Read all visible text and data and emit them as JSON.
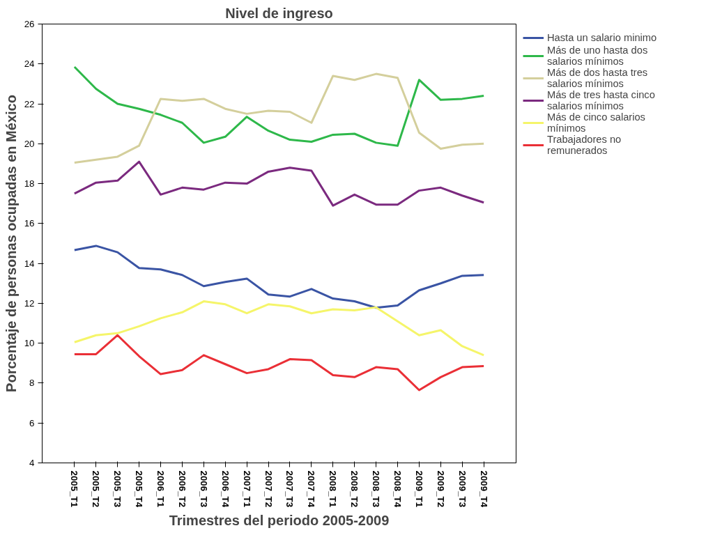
{
  "chart_data": {
    "type": "line",
    "title": "Nivel de ingreso",
    "xlabel": "Trimestres del periodo 2005-2009",
    "ylabel": "Porcentaje de personas ocupadas en México",
    "categories": [
      "2005_T1",
      "2005_T2",
      "2005_T3",
      "2005_T4",
      "2006_T1",
      "2006_T2",
      "2006_T3",
      "2006_T4",
      "2007_T1",
      "2007_T2",
      "2007_T3",
      "2007_T4",
      "2008_T1",
      "2008_T2",
      "2008_T3",
      "2008_T4",
      "2009_T1",
      "2009_T2",
      "2009_T3",
      "2009_T4"
    ],
    "ylim": [
      4,
      26
    ],
    "yticks": [
      4,
      6,
      8,
      10,
      12,
      14,
      16,
      18,
      20,
      22,
      24,
      26
    ],
    "grid": false,
    "legend": "top right",
    "marker": "none",
    "line_style": "solid",
    "series": [
      {
        "name": "Hasta un salario minimo",
        "color": "#3a54a4",
        "values": [
          14.67,
          14.88,
          14.56,
          13.77,
          13.7,
          13.42,
          12.86,
          13.07,
          13.24,
          12.44,
          12.34,
          12.72,
          12.24,
          12.1,
          11.78,
          11.89,
          12.65,
          13.0,
          13.38,
          13.42
        ]
      },
      {
        "name": "Más de uno hasta dos salarios mínimos",
        "color": "#2eb84a",
        "values": [
          23.85,
          22.75,
          22.0,
          21.75,
          21.45,
          21.05,
          20.05,
          20.35,
          21.35,
          20.65,
          20.2,
          20.1,
          20.45,
          20.5,
          20.05,
          19.9,
          23.2,
          22.2,
          22.25,
          22.4
        ]
      },
      {
        "name": "Más de dos hasta tres salarios mínimos",
        "color": "#d4cf9c",
        "values": [
          19.05,
          19.2,
          19.35,
          19.9,
          22.25,
          22.15,
          22.25,
          21.75,
          21.5,
          21.65,
          21.6,
          21.05,
          23.4,
          23.2,
          23.5,
          23.3,
          20.55,
          19.75,
          19.95,
          20.0
        ]
      },
      {
        "name": "Más de tres hasta cinco salarios mínimos",
        "color": "#7b2a7f",
        "values": [
          17.5,
          18.05,
          18.15,
          19.1,
          17.45,
          17.8,
          17.7,
          18.05,
          18.0,
          18.6,
          18.8,
          18.65,
          16.9,
          17.45,
          16.95,
          16.95,
          17.65,
          17.8,
          17.4,
          17.05
        ]
      },
      {
        "name": "Más de cinco salarios mínimos",
        "color": "#f5f56a",
        "values": [
          10.05,
          10.4,
          10.5,
          10.85,
          11.25,
          11.55,
          12.1,
          11.95,
          11.5,
          11.95,
          11.85,
          11.5,
          11.7,
          11.65,
          11.8,
          11.1,
          10.4,
          10.65,
          9.85,
          9.4
        ]
      },
      {
        "name": "Trabajadores no remunerados",
        "color": "#ea2f36",
        "values": [
          9.45,
          9.45,
          10.4,
          9.35,
          8.45,
          8.65,
          9.4,
          8.95,
          8.5,
          8.7,
          9.2,
          9.15,
          8.4,
          8.3,
          8.8,
          8.7,
          7.65,
          8.3,
          8.8,
          8.85
        ]
      }
    ]
  }
}
